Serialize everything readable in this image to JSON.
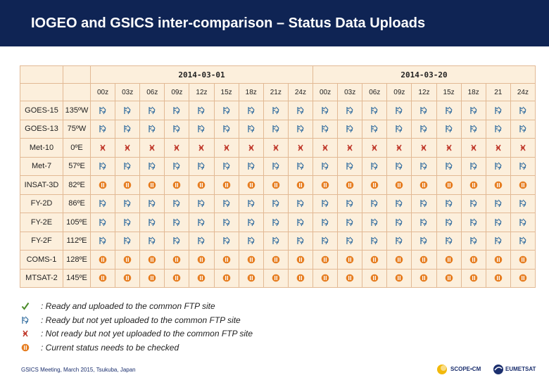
{
  "title": "IOGEO and GSICS inter-comparison – Status Data Uploads",
  "dates": [
    "2014-03-01",
    "2014-03-20"
  ],
  "times": [
    [
      "00z",
      "03z",
      "06z",
      "09z",
      "12z",
      "15z",
      "18z",
      "21z",
      "24z"
    ],
    [
      "00z",
      "03z",
      "06z",
      "09z",
      "12z",
      "15z",
      "18z",
      "21",
      "24z"
    ]
  ],
  "satellites": [
    {
      "name": "GOES-15",
      "position": "135ºW",
      "status": "ready_not_uploaded"
    },
    {
      "name": "GOES-13",
      "position": "75ºW",
      "status": "ready_not_uploaded"
    },
    {
      "name": "Met-10",
      "position": "0ºE",
      "status": "not_ready"
    },
    {
      "name": "Met-7",
      "position": "57ºE",
      "status": "ready_not_uploaded"
    },
    {
      "name": "INSAT-3D",
      "position": "82ºE",
      "status": "check"
    },
    {
      "name": "FY-2D",
      "position": "86ºE",
      "status": "ready_not_uploaded"
    },
    {
      "name": "FY-2E",
      "position": "105ºE",
      "status": "ready_not_uploaded"
    },
    {
      "name": "FY-2F",
      "position": "112ºE",
      "status": "ready_not_uploaded"
    },
    {
      "name": "COMS-1",
      "position": "128ºE",
      "status": "check"
    },
    {
      "name": "MTSAT-2",
      "position": "145ºE",
      "status": "check"
    }
  ],
  "legend": [
    {
      "icon": "check-icon",
      "text": ": Ready and uploaded to the common FTP site"
    },
    {
      "icon": "ready-not-uploaded-icon",
      "text": ": Ready but not yet uploaded to the common FTP site"
    },
    {
      "icon": "not-ready-icon",
      "text": ": Not ready but not yet uploaded to the common FTP site"
    },
    {
      "icon": "check-status-icon",
      "text": ": Current status needs to be checked"
    }
  ],
  "footer": "GSICS Meeting, March 2015, Tsukuba, Japan",
  "logos": {
    "scope": "SCOPE•CM",
    "eumetsat": "EUMETSAT"
  },
  "colors": {
    "banner": "#0f2454",
    "table_bg": "#fcefdc",
    "grid": "#e2b994",
    "ready_icon": "#2f6b9e",
    "not_ready_icon": "#c0392b",
    "check_icon": "#e67e22",
    "check_mark": "#4b8b2a"
  }
}
